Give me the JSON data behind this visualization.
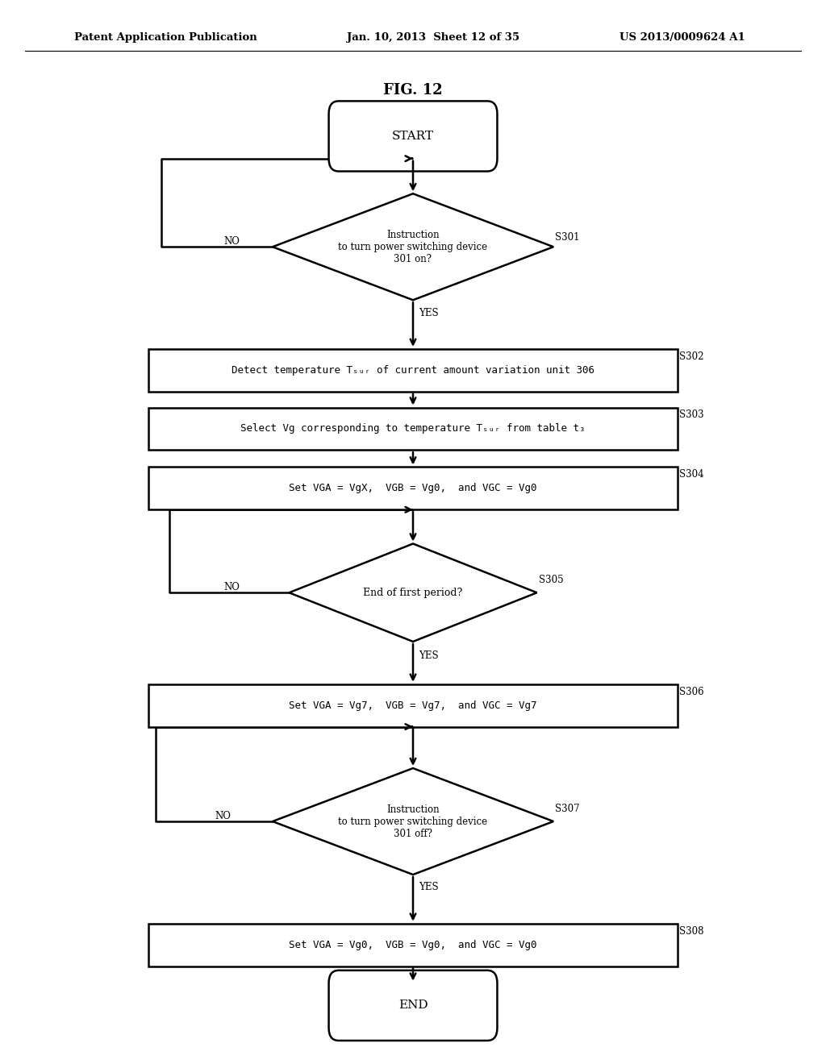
{
  "title": "FIG. 12",
  "header_left": "Patent Application Publication",
  "header_center": "Jan. 10, 2013  Sheet 12 of 35",
  "header_right": "US 2013/0009624 A1",
  "bg_color": "#ffffff"
}
